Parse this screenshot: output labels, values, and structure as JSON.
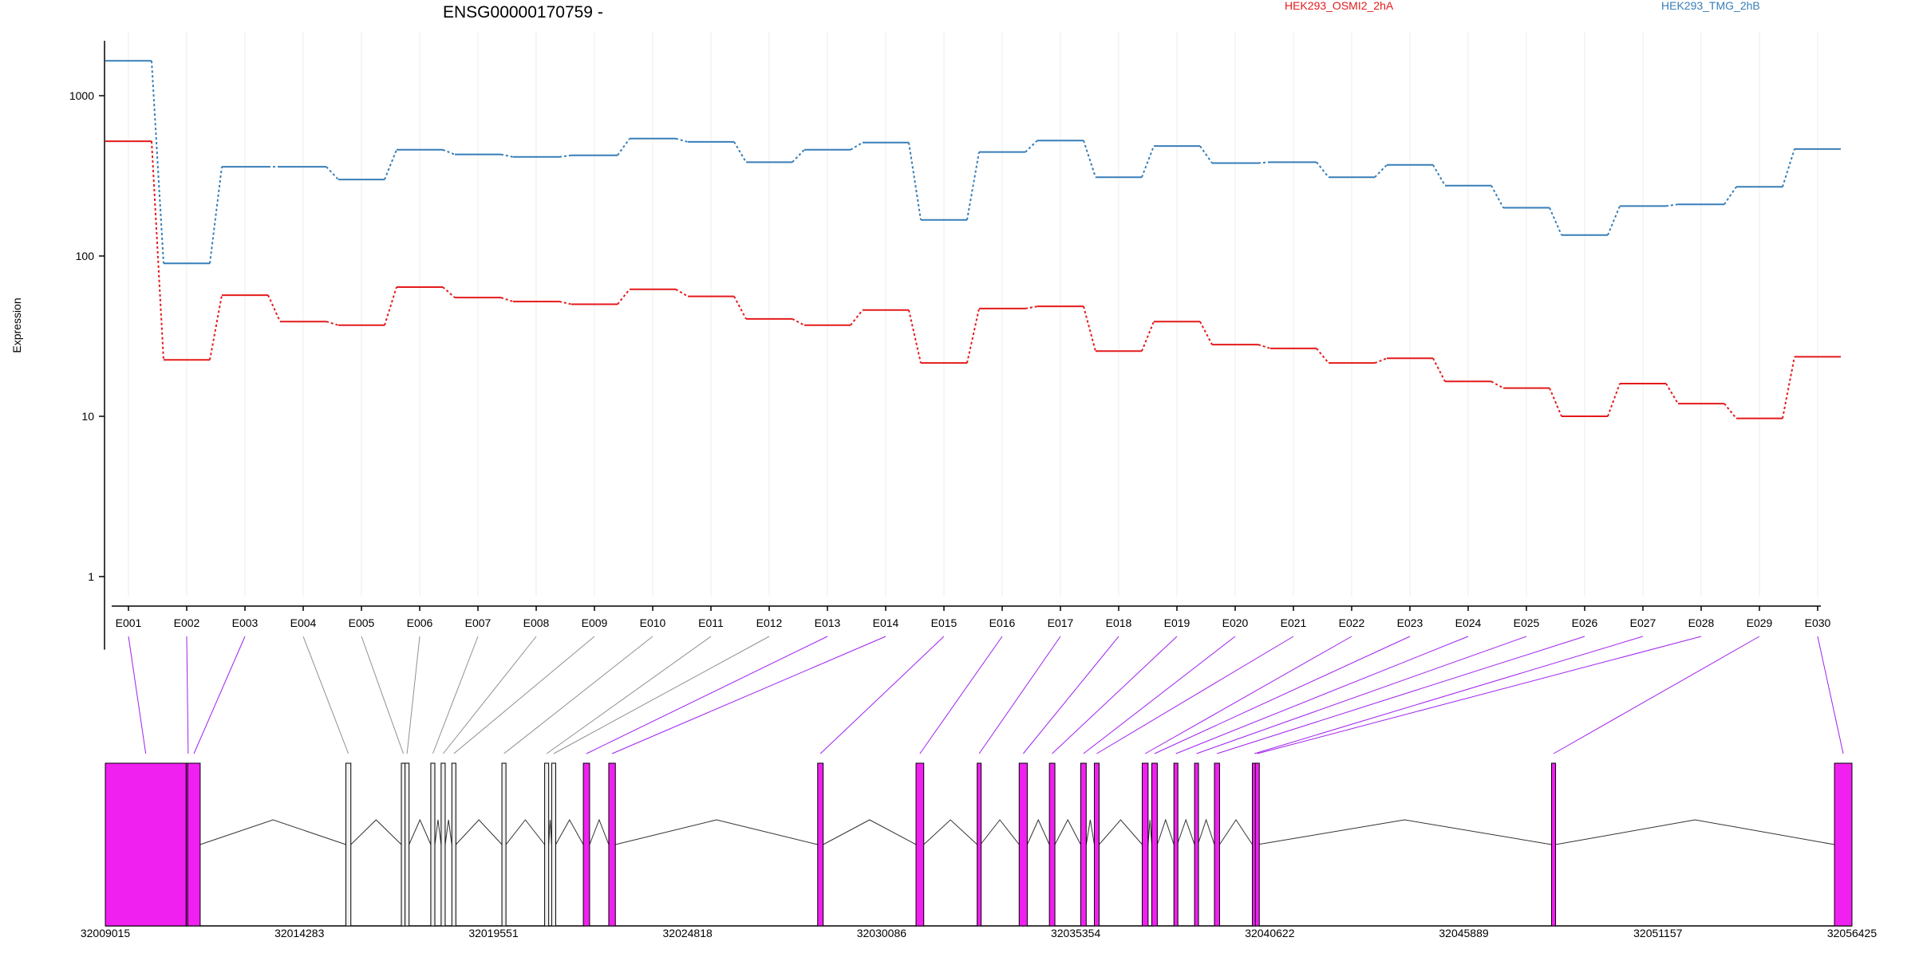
{
  "chart_data": {
    "type": "line",
    "title": "ENSG00000170759 -",
    "ylabel": "Expression",
    "yscale": "log",
    "ylim": [
      0.35,
      2200
    ],
    "yticks": [
      "1",
      "10",
      "100",
      "1000"
    ],
    "grid": "vertical",
    "legend_position": "top",
    "categories": [
      "E001",
      "E002",
      "E003",
      "E004",
      "E005",
      "E006",
      "E007",
      "E008",
      "E009",
      "E010",
      "E011",
      "E012",
      "E013",
      "E014",
      "E015",
      "E016",
      "E017",
      "E018",
      "E019",
      "E020",
      "E021",
      "E022",
      "E023",
      "E024",
      "E025",
      "E026",
      "E027",
      "E028",
      "E029",
      "E030"
    ],
    "series": [
      {
        "name": "HEK293_OSMI2_2hA",
        "color": "#e41a1c",
        "values": [
          520,
          22.5,
          57,
          39,
          37,
          64,
          55,
          52,
          50,
          62,
          56,
          40.5,
          37,
          46,
          21.5,
          47,
          48.5,
          25.5,
          39,
          28,
          26.5,
          21.5,
          23,
          16.5,
          15,
          10,
          16,
          12,
          9.7,
          23.5
        ]
      },
      {
        "name": "HEK293_TMG_2hB",
        "color": "#377eb8",
        "values": [
          1650,
          90,
          360,
          360,
          300,
          460,
          430,
          415,
          425,
          540,
          515,
          385,
          460,
          510,
          168,
          445,
          525,
          310,
          485,
          380,
          385,
          310,
          370,
          275,
          200,
          135,
          205,
          210,
          270,
          465
        ]
      }
    ]
  },
  "gene_model": {
    "coordinate_ticks": [
      "32009015",
      "32014283",
      "32019551",
      "32024818",
      "32030086",
      "32035354",
      "32040622",
      "32045889",
      "32051157",
      "32056425"
    ],
    "exon_fill": "#f020f0",
    "exon_fill_other": "#f0f0f0",
    "connector_color_default": "#a020f0",
    "connector_color_other": "#909090",
    "exons": [
      {
        "id": "E001",
        "start": 32009015,
        "end": 32011210,
        "highlight": true
      },
      {
        "id": "E002",
        "start": 32011210,
        "end": 32011250,
        "highlight": true
      },
      {
        "id": "E003",
        "start": 32011250,
        "end": 32011590,
        "highlight": true
      },
      {
        "id": "E004",
        "start": 32015545,
        "end": 32015680,
        "highlight": false
      },
      {
        "id": "E005",
        "start": 32017050,
        "end": 32017150,
        "highlight": false
      },
      {
        "id": "E006",
        "start": 32017150,
        "end": 32017260,
        "highlight": false
      },
      {
        "id": "E007",
        "start": 32017850,
        "end": 32017960,
        "highlight": false
      },
      {
        "id": "E008",
        "start": 32018130,
        "end": 32018240,
        "highlight": false
      },
      {
        "id": "E009",
        "start": 32018420,
        "end": 32018530,
        "highlight": false
      },
      {
        "id": "E010",
        "start": 32019780,
        "end": 32019890,
        "highlight": false
      },
      {
        "id": "E011",
        "start": 32020940,
        "end": 32021050,
        "highlight": false
      },
      {
        "id": "E012",
        "start": 32021130,
        "end": 32021240,
        "highlight": false
      },
      {
        "id": "E013",
        "start": 32021990,
        "end": 32022160,
        "highlight": true
      },
      {
        "id": "E014",
        "start": 32022680,
        "end": 32022860,
        "highlight": true
      },
      {
        "id": "E015",
        "start": 32028350,
        "end": 32028500,
        "highlight": true
      },
      {
        "id": "E016",
        "start": 32031020,
        "end": 32031230,
        "highlight": true
      },
      {
        "id": "E017",
        "start": 32032680,
        "end": 32032770,
        "highlight": true
      },
      {
        "id": "E018",
        "start": 32033820,
        "end": 32034040,
        "highlight": true
      },
      {
        "id": "E019",
        "start": 32034640,
        "end": 32034790,
        "highlight": true
      },
      {
        "id": "E020",
        "start": 32035490,
        "end": 32035640,
        "highlight": true
      },
      {
        "id": "E021",
        "start": 32035860,
        "end": 32035990,
        "highlight": true
      },
      {
        "id": "E022",
        "start": 32037160,
        "end": 32037320,
        "highlight": true
      },
      {
        "id": "E023",
        "start": 32037420,
        "end": 32037570,
        "highlight": true
      },
      {
        "id": "E024",
        "start": 32038020,
        "end": 32038110,
        "highlight": true
      },
      {
        "id": "E025",
        "start": 32038580,
        "end": 32038670,
        "highlight": true
      },
      {
        "id": "E026",
        "start": 32039120,
        "end": 32039260,
        "highlight": true
      },
      {
        "id": "E027",
        "start": 32040150,
        "end": 32040230,
        "highlight": true
      },
      {
        "id": "E028",
        "start": 32040230,
        "end": 32040290,
        "highlight": true
      },
      {
        "id": "E029",
        "start": 32048270,
        "end": 32048380,
        "highlight": true
      },
      {
        "id": "E030",
        "start": 32055950,
        "end": 32056425,
        "highlight": true
      }
    ]
  }
}
